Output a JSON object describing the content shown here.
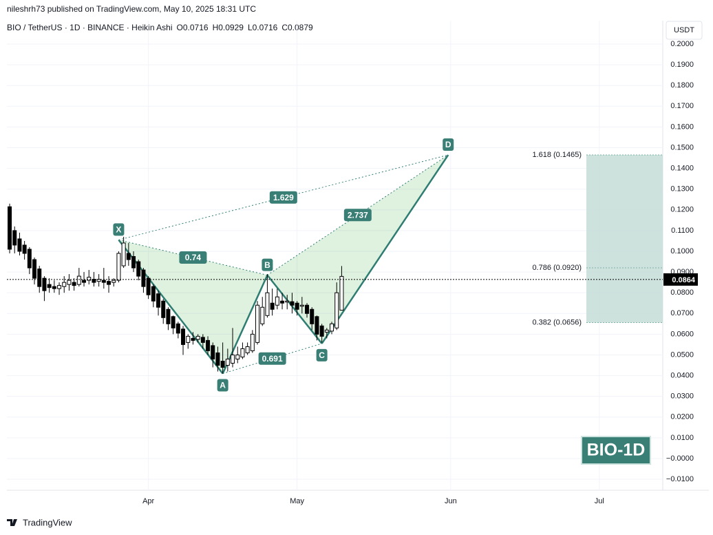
{
  "header": {
    "publisher": "nileshrh73 published on TradingView.com, May 10, 2025 18:31 UTC",
    "brand": "TradingView"
  },
  "chart_data": {
    "type": "candlestick",
    "title": "BIO / TetherUS · 1D · BINANCE · Heikin Ashi",
    "ohlc_legend": [
      {
        "value": 0.0716,
        "label": "O0.0716"
      },
      {
        "value": 0.0929,
        "label": "H0.0929"
      },
      {
        "value": 0.0716,
        "label": "L0.0716"
      },
      {
        "value": 0.0879,
        "label": "C0.0879"
      }
    ],
    "currency": "USDT",
    "watermark": "BIO-1D",
    "up_color": "#ffffff",
    "down_color": "#000000",
    "x": [
      0,
      1,
      2,
      3,
      4,
      5,
      6,
      7,
      8,
      9,
      10,
      11,
      12,
      13,
      14,
      15,
      16,
      17,
      18,
      19,
      20,
      21,
      22,
      23,
      24,
      25,
      26,
      27,
      28,
      29,
      30,
      31,
      32,
      33,
      34,
      35,
      36,
      37,
      38,
      39,
      40,
      41,
      42,
      43,
      44,
      45,
      46,
      47,
      48,
      49,
      50,
      51,
      52,
      53,
      54,
      55,
      56,
      57,
      58,
      59,
      60,
      61,
      62,
      63,
      64,
      65,
      66,
      67
    ],
    "open": [
      0.1215,
      0.11,
      0.106,
      0.103,
      0.101,
      0.096,
      0.0915,
      0.087,
      0.084,
      0.083,
      0.082,
      0.083,
      0.084,
      0.085,
      0.084,
      0.086,
      0.086,
      0.0865,
      0.0855,
      0.086,
      0.0855,
      0.085,
      0.086,
      0.093,
      0.099,
      0.0975,
      0.095,
      0.091,
      0.087,
      0.083,
      0.0795,
      0.076,
      0.072,
      0.0685,
      0.065,
      0.0625,
      0.056,
      0.058,
      0.0575,
      0.0585,
      0.057,
      0.0545,
      0.051,
      0.047,
      0.045,
      0.046,
      0.048,
      0.049,
      0.051,
      0.052,
      0.056,
      0.065,
      0.069,
      0.075,
      0.074,
      0.076,
      0.0755,
      0.0757,
      0.075,
      0.0735,
      0.074,
      0.072,
      0.0685,
      0.064,
      0.061,
      0.0615,
      0.063,
      0.0716
    ],
    "high": [
      0.123,
      0.112,
      0.109,
      0.105,
      0.102,
      0.097,
      0.093,
      0.088,
      0.087,
      0.086,
      0.085,
      0.088,
      0.089,
      0.087,
      0.092,
      0.09,
      0.091,
      0.09,
      0.089,
      0.092,
      0.088,
      0.087,
      0.1,
      0.107,
      0.104,
      0.1,
      0.096,
      0.092,
      0.088,
      0.084,
      0.081,
      0.077,
      0.073,
      0.069,
      0.066,
      0.064,
      0.06,
      0.061,
      0.06,
      0.06,
      0.059,
      0.056,
      0.054,
      0.056,
      0.053,
      0.063,
      0.054,
      0.056,
      0.056,
      0.062,
      0.076,
      0.078,
      0.089,
      0.082,
      0.082,
      0.08,
      0.079,
      0.08,
      0.076,
      0.078,
      0.075,
      0.073,
      0.069,
      0.065,
      0.063,
      0.066,
      0.085,
      0.0929
    ],
    "low": [
      0.099,
      0.099,
      0.098,
      0.096,
      0.089,
      0.084,
      0.08,
      0.076,
      0.08,
      0.08,
      0.079,
      0.08,
      0.081,
      0.081,
      0.083,
      0.083,
      0.084,
      0.083,
      0.083,
      0.082,
      0.08,
      0.083,
      0.085,
      0.092,
      0.093,
      0.09,
      0.086,
      0.08,
      0.077,
      0.073,
      0.069,
      0.065,
      0.062,
      0.06,
      0.058,
      0.05,
      0.053,
      0.055,
      0.056,
      0.053,
      0.05,
      0.044,
      0.042,
      0.041,
      0.042,
      0.044,
      0.046,
      0.048,
      0.05,
      0.051,
      0.055,
      0.064,
      0.068,
      0.069,
      0.072,
      0.072,
      0.072,
      0.07,
      0.069,
      0.07,
      0.068,
      0.062,
      0.057,
      0.056,
      0.058,
      0.06,
      0.062,
      0.0716
    ],
    "close": [
      0.101,
      0.103,
      0.1,
      0.099,
      0.092,
      0.087,
      0.083,
      0.081,
      0.0825,
      0.082,
      0.0835,
      0.085,
      0.086,
      0.0835,
      0.088,
      0.085,
      0.0875,
      0.085,
      0.0865,
      0.085,
      0.084,
      0.086,
      0.099,
      0.104,
      0.096,
      0.092,
      0.088,
      0.083,
      0.079,
      0.076,
      0.073,
      0.068,
      0.065,
      0.063,
      0.0605,
      0.055,
      0.059,
      0.057,
      0.059,
      0.056,
      0.052,
      0.048,
      0.045,
      0.044,
      0.048,
      0.05,
      0.05,
      0.053,
      0.054,
      0.06,
      0.074,
      0.073,
      0.08,
      0.072,
      0.078,
      0.075,
      0.076,
      0.074,
      0.072,
      0.074,
      0.07,
      0.065,
      0.06,
      0.059,
      0.062,
      0.065,
      0.08,
      0.0879
    ],
    "xlim": [
      -0.56,
      131.8
    ],
    "xticks": [
      {
        "value": 28,
        "label": "Apr"
      },
      {
        "value": 58,
        "label": "May"
      },
      {
        "value": 89,
        "label": "Jun"
      },
      {
        "value": 119,
        "label": "Jul"
      }
    ],
    "ylim": [
      -0.0153,
      0.2113
    ],
    "yticks": [
      {
        "value": 0.2,
        "label": "0.2000"
      },
      {
        "value": 0.19,
        "label": "0.1900"
      },
      {
        "value": 0.18,
        "label": "0.1800"
      },
      {
        "value": 0.17,
        "label": "0.1700"
      },
      {
        "value": 0.16,
        "label": "0.1600"
      },
      {
        "value": 0.15,
        "label": "0.1500"
      },
      {
        "value": 0.14,
        "label": "0.1400"
      },
      {
        "value": 0.13,
        "label": "0.1300"
      },
      {
        "value": 0.12,
        "label": "0.1200"
      },
      {
        "value": 0.11,
        "label": "0.1100"
      },
      {
        "value": 0.1,
        "label": "0.1000"
      },
      {
        "value": 0.09,
        "label": "0.0900"
      },
      {
        "value": 0.08,
        "label": "0.0800"
      },
      {
        "value": 0.07,
        "label": "0.0700"
      },
      {
        "value": 0.06,
        "label": "0.0600"
      },
      {
        "value": 0.05,
        "label": "0.0500"
      },
      {
        "value": 0.04,
        "label": "0.0400"
      },
      {
        "value": 0.03,
        "label": "0.0300"
      },
      {
        "value": 0.02,
        "label": "0.0200"
      },
      {
        "value": 0.01,
        "label": "0.0100"
      },
      {
        "value": 0,
        "label": "−0.0000"
      },
      {
        "value": -0.01,
        "label": "−0.0100"
      }
    ],
    "grid": true,
    "last_price": 0.0864,
    "pattern": {
      "color": "#2f7d72",
      "points": [
        {
          "label": "X",
          "x": 22,
          "y": 0.1055
        },
        {
          "label": "A",
          "x": 43,
          "y": 0.041
        },
        {
          "label": "B",
          "x": 52,
          "y": 0.0885
        },
        {
          "label": "C",
          "x": 63,
          "y": 0.0555
        },
        {
          "label": "D",
          "x": 88.5,
          "y": 0.1465
        }
      ],
      "ratios": [
        0.74,
        0.691,
        2.737,
        1.629
      ]
    },
    "fib_levels": [
      {
        "value": 0.1465,
        "label": "1.618 (0.1465)"
      },
      {
        "value": 0.092,
        "label": "0.786 (0.0920)"
      },
      {
        "value": 0.0656,
        "label": "0.382 (0.0656)"
      }
    ]
  }
}
